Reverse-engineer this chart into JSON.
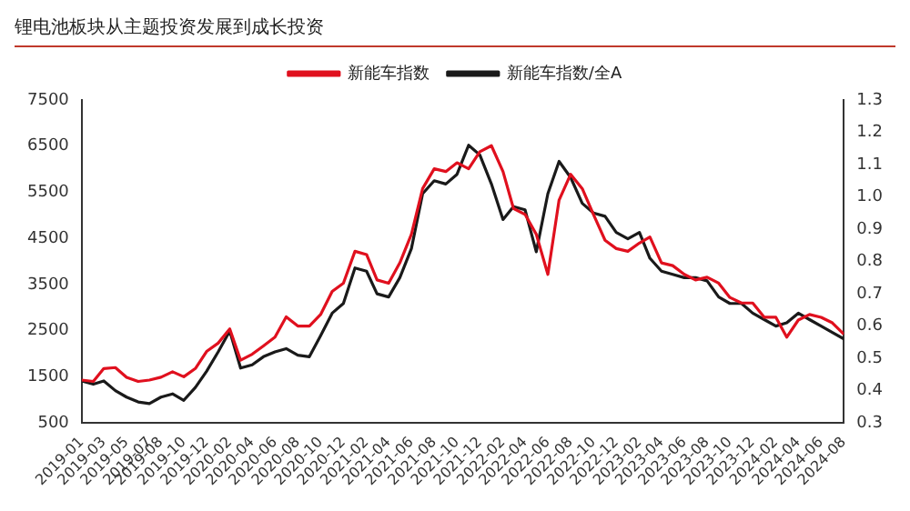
{
  "chart_data": {
    "type": "line",
    "title": "锂电池板块从主题投资发展到成长投资",
    "x": [
      "2019-01",
      "2019-02",
      "2019-03",
      "2019-04",
      "2019-05",
      "2019-06",
      "2019-07",
      "2019-08",
      "2019-09",
      "2019-10",
      "2019-11",
      "2019-12",
      "2020-01",
      "2020-02",
      "2020-03",
      "2020-04",
      "2020-05",
      "2020-06",
      "2020-07",
      "2020-08",
      "2020-09",
      "2020-10",
      "2020-11",
      "2020-12",
      "2021-01",
      "2021-02",
      "2021-03",
      "2021-04",
      "2021-05",
      "2021-06",
      "2021-07",
      "2021-08",
      "2021-09",
      "2021-10",
      "2021-11",
      "2021-12",
      "2022-01",
      "2022-02",
      "2022-03",
      "2022-04",
      "2022-05",
      "2022-06",
      "2022-07",
      "2022-08",
      "2022-09",
      "2022-10",
      "2022-11",
      "2022-12",
      "2023-01",
      "2023-02",
      "2023-03",
      "2023-04",
      "2023-05",
      "2023-06",
      "2023-07",
      "2023-08",
      "2023-09",
      "2023-10",
      "2023-11",
      "2023-12",
      "2024-01",
      "2024-02",
      "2024-03",
      "2024-04",
      "2024-05",
      "2024-06",
      "2024-07",
      "2024-08"
    ],
    "series": [
      {
        "name": "新能车指数",
        "color": "#e0101e",
        "values": [
          1430,
          1400,
          1680,
          1700,
          1490,
          1400,
          1430,
          1490,
          1610,
          1500,
          1680,
          2050,
          2230,
          2540,
          1860,
          1990,
          2170,
          2360,
          2800,
          2600,
          2600,
          2850,
          3350,
          3530,
          4220,
          4150,
          3600,
          3530,
          3970,
          4590,
          5580,
          6010,
          5950,
          6140,
          6010,
          6380,
          6510,
          5950,
          5150,
          5020,
          4590,
          3720,
          5330,
          5890,
          5580,
          5020,
          4460,
          4280,
          4220,
          4400,
          4530,
          3970,
          3910,
          3720,
          3600,
          3660,
          3530,
          3220,
          3100,
          3100,
          2790,
          2790,
          2360,
          2730,
          2850,
          2790,
          2670,
          2420
        ]
      },
      {
        "name": "新能车指数/全A",
        "color": "#1a1a1a",
        "axis": "y2",
        "values": [
          0.43,
          0.42,
          0.43,
          0.4,
          0.38,
          0.365,
          0.36,
          0.38,
          0.39,
          0.37,
          0.41,
          0.46,
          0.52,
          0.585,
          0.47,
          0.48,
          0.505,
          0.52,
          0.53,
          0.51,
          0.505,
          0.57,
          0.64,
          0.67,
          0.78,
          0.77,
          0.7,
          0.69,
          0.75,
          0.84,
          1.01,
          1.05,
          1.04,
          1.07,
          1.16,
          1.13,
          1.04,
          0.93,
          0.97,
          0.96,
          0.83,
          1.01,
          1.11,
          1.06,
          0.98,
          0.95,
          0.94,
          0.89,
          0.87,
          0.89,
          0.81,
          0.77,
          0.76,
          0.75,
          0.75,
          0.74,
          0.69,
          0.67,
          0.67,
          0.64,
          0.62,
          0.6,
          0.61,
          0.64,
          0.62,
          0.6,
          0.58,
          0.56
        ]
      }
    ],
    "xlim": [
      "2019-01",
      "2024-08"
    ],
    "xticks": [
      "2019-01",
      "2019-03",
      "2019-05",
      "2019-07",
      "2019-08",
      "2019-10",
      "2019-12",
      "2020-02",
      "2020-04",
      "2020-06",
      "2020-08",
      "2020-10",
      "2020-12",
      "2021-02",
      "2021-04",
      "2021-06",
      "2021-08",
      "2021-10",
      "2021-12",
      "2022-02",
      "2022-04",
      "2022-06",
      "2022-08",
      "2022-10",
      "2022-12",
      "2023-02",
      "2023-04",
      "2023-06",
      "2023-08",
      "2023-10",
      "2023-12",
      "2024-02",
      "2024-04",
      "2024-06",
      "2024-08"
    ],
    "ylim": [
      500,
      7500
    ],
    "yticks": [
      500,
      1500,
      2500,
      3500,
      4500,
      5500,
      6500,
      7500
    ],
    "y2lim": [
      0.3,
      1.3
    ],
    "y2ticks": [
      0.3,
      0.4,
      0.5,
      0.6,
      0.7,
      0.8,
      0.9,
      {
        "value": 1,
        "label": "1.0"
      },
      1.1,
      1.2,
      1.3
    ],
    "grid": false,
    "legend": "top",
    "marker": "none",
    "line_style": "solid"
  }
}
